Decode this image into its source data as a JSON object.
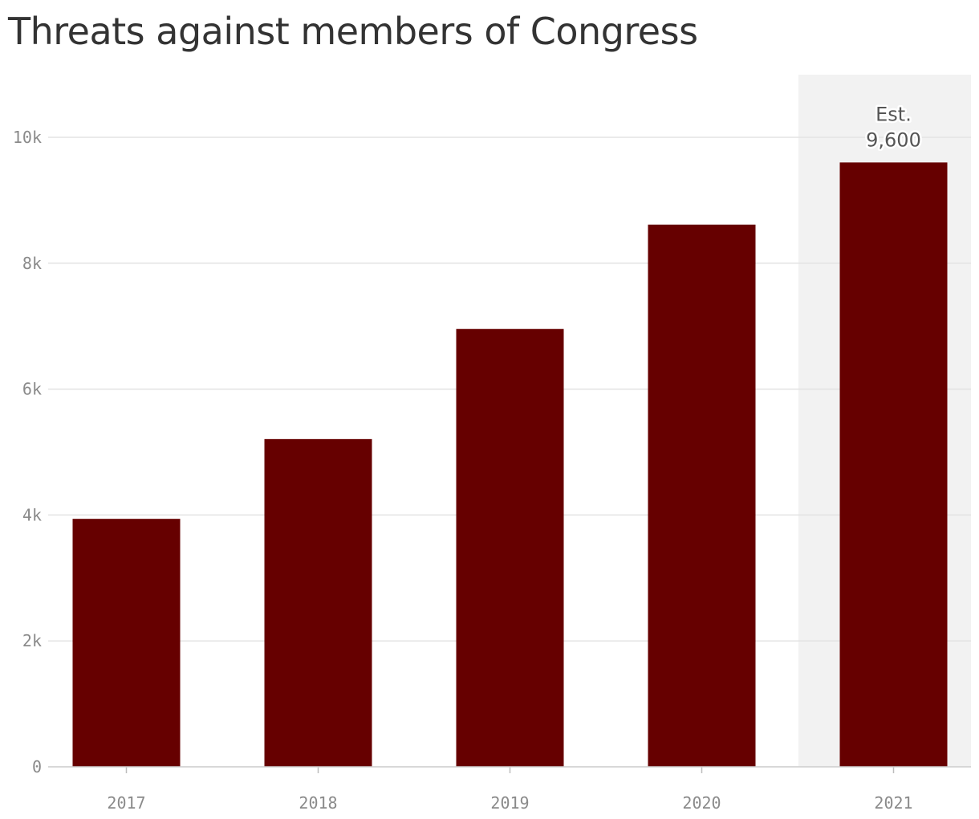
{
  "chart_data": {
    "type": "bar",
    "title": "Threats against members of Congress",
    "categories": [
      "2017",
      "2018",
      "2019",
      "2020",
      "2021"
    ],
    "values": [
      3939,
      5206,
      6955,
      8613,
      9600
    ],
    "ylim": [
      0,
      10000
    ],
    "yticks": [
      {
        "value": 0,
        "label": "0"
      },
      {
        "value": 2000,
        "label": "2k"
      },
      {
        "value": 4000,
        "label": "4k"
      },
      {
        "value": 6000,
        "label": "6k"
      },
      {
        "value": 8000,
        "label": "8k"
      },
      {
        "value": 10000,
        "label": "10k"
      }
    ],
    "highlight_category": "2021",
    "annotation": {
      "category": "2021",
      "line1": "Est.",
      "line2": "9,600"
    },
    "grid": true,
    "colors": {
      "bar": "#660000",
      "highlight_band": "#f2f2f2",
      "grid": "#e3e3e3"
    }
  }
}
